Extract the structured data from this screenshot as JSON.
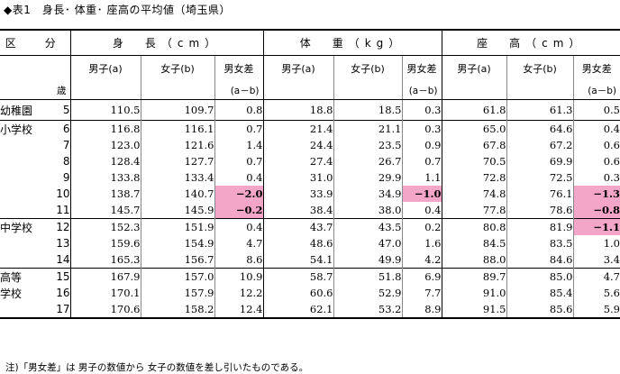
{
  "title": "◆表1　身長･ 体重･ 座高の平均値（埼玉県）",
  "header": {
    "kubun": "区　分",
    "sai": "歳",
    "groups": [
      "身　長（cm）",
      "体　重（kg）",
      "座　高（cm）"
    ],
    "cols": [
      "男子(a)",
      "女子(b)",
      "男女差"
    ],
    "diff_formula": "(a－b)"
  },
  "rows": [
    {
      "school": "幼稚園",
      "age": "5",
      "h": [
        "110.5",
        "109.7",
        "0.8"
      ],
      "w": [
        "18.8",
        "18.5",
        "0.3"
      ],
      "s": [
        "61.8",
        "61.3",
        "0.5"
      ]
    },
    {
      "school": "小学校",
      "age": "6",
      "h": [
        "116.8",
        "116.1",
        "0.7"
      ],
      "w": [
        "21.4",
        "21.1",
        "0.3"
      ],
      "s": [
        "65.0",
        "64.6",
        "0.4"
      ]
    },
    {
      "school": "",
      "age": "7",
      "h": [
        "123.0",
        "121.6",
        "1.4"
      ],
      "w": [
        "24.4",
        "23.5",
        "0.9"
      ],
      "s": [
        "67.8",
        "67.2",
        "0.6"
      ]
    },
    {
      "school": "",
      "age": "8",
      "h": [
        "128.4",
        "127.7",
        "0.7"
      ],
      "w": [
        "27.4",
        "26.7",
        "0.7"
      ],
      "s": [
        "70.5",
        "69.9",
        "0.6"
      ]
    },
    {
      "school": "",
      "age": "9",
      "h": [
        "133.8",
        "133.4",
        "0.4"
      ],
      "w": [
        "31.0",
        "29.9",
        "1.1"
      ],
      "s": [
        "72.8",
        "72.5",
        "0.3"
      ]
    },
    {
      "school": "",
      "age": "10",
      "h": [
        "138.7",
        "140.7",
        "−2.0"
      ],
      "w": [
        "33.9",
        "34.9",
        "−1.0"
      ],
      "s": [
        "74.8",
        "76.1",
        "−1.3"
      ]
    },
    {
      "school": "",
      "age": "11",
      "h": [
        "145.7",
        "145.9",
        "−0.2"
      ],
      "w": [
        "38.4",
        "38.0",
        "0.4"
      ],
      "s": [
        "77.8",
        "78.6",
        "−0.8"
      ]
    },
    {
      "school": "中学校",
      "age": "12",
      "h": [
        "152.3",
        "151.9",
        "0.4"
      ],
      "w": [
        "43.7",
        "43.5",
        "0.2"
      ],
      "s": [
        "80.8",
        "81.9",
        "−1.1"
      ]
    },
    {
      "school": "",
      "age": "13",
      "h": [
        "159.6",
        "154.9",
        "4.7"
      ],
      "w": [
        "48.6",
        "47.0",
        "1.6"
      ],
      "s": [
        "84.5",
        "83.5",
        "1.0"
      ]
    },
    {
      "school": "",
      "age": "14",
      "h": [
        "165.3",
        "156.7",
        "8.6"
      ],
      "w": [
        "54.1",
        "49.9",
        "4.2"
      ],
      "s": [
        "88.0",
        "84.6",
        "3.4"
      ]
    },
    {
      "school": "高等",
      "age": "15",
      "h": [
        "167.9",
        "157.0",
        "10.9"
      ],
      "w": [
        "58.7",
        "51.8",
        "6.9"
      ],
      "s": [
        "89.7",
        "85.0",
        "4.7"
      ]
    },
    {
      "school": "学校",
      "age": "16",
      "h": [
        "170.1",
        "157.9",
        "12.2"
      ],
      "w": [
        "60.6",
        "52.9",
        "7.7"
      ],
      "s": [
        "91.0",
        "85.4",
        "5.6"
      ]
    },
    {
      "school": "",
      "age": "17",
      "h": [
        "170.6",
        "158.2",
        "12.4"
      ],
      "w": [
        "62.1",
        "53.2",
        "8.9"
      ],
      "s": [
        "91.5",
        "85.6",
        "5.9"
      ]
    }
  ],
  "note": "注)「男女差」は 男子の数値から 女子の数値を差し引いたものである。",
  "colors": {
    "negative_highlight": "#f4a6c8"
  }
}
